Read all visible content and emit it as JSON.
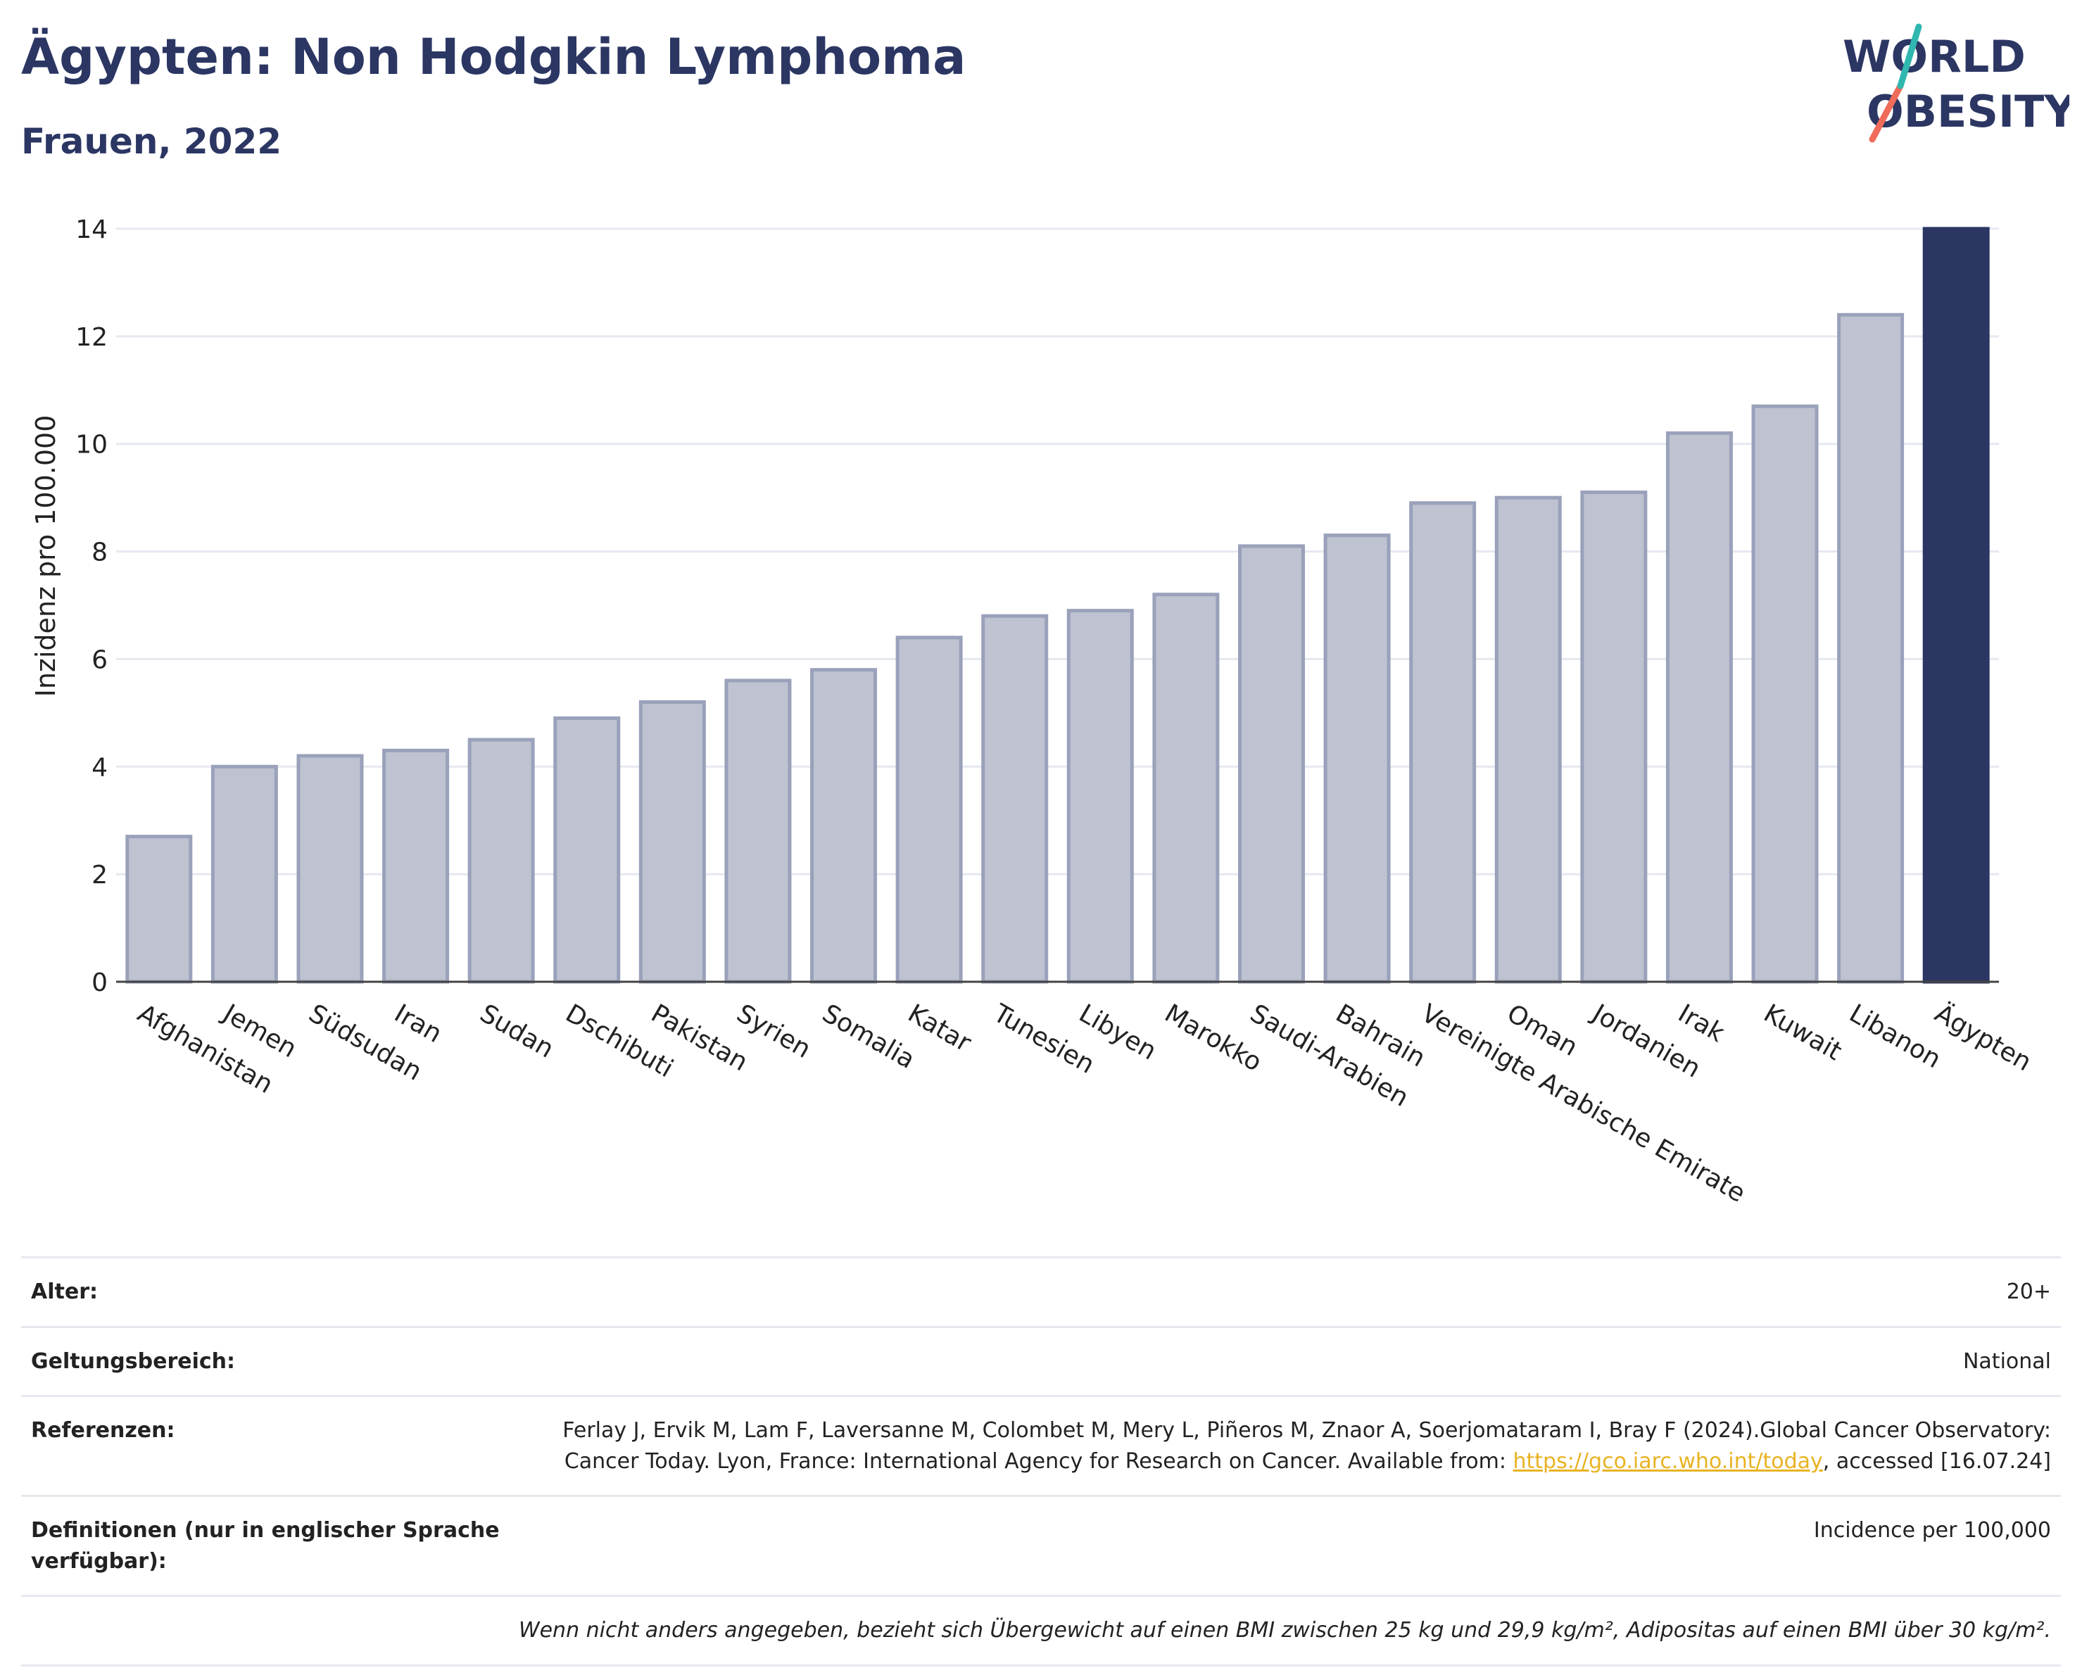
{
  "header": {
    "title": "Ägypten: Non Hodgkin Lymphoma",
    "subtitle": "Frauen, 2022"
  },
  "logo": {
    "line1": "WORLD",
    "line2": "OBESITY"
  },
  "colors": {
    "highlight_bar": "#2b3663",
    "regular_bar_fill": "#bec2d1",
    "regular_bar_stroke": "#9aa1ba",
    "grid": "#e6e8f0",
    "text": "#222222",
    "logo_teal": "#2fb7b0",
    "logo_coral": "#f06b5a"
  },
  "chart_data": {
    "type": "bar",
    "title": "Ägypten: Non Hodgkin Lymphoma",
    "subtitle": "Frauen, 2022",
    "xlabel": "",
    "ylabel": "Inzidenz pro 100.000",
    "ylim": [
      0,
      14
    ],
    "yticks": [
      0,
      2,
      4,
      6,
      8,
      10,
      12,
      14
    ],
    "grid": true,
    "highlight": "Ägypten",
    "categories": [
      "Afghanistan",
      "Jemen",
      "Südsudan",
      "Iran",
      "Sudan",
      "Dschibuti",
      "Pakistan",
      "Syrien",
      "Somalia",
      "Katar",
      "Tunesien",
      "Libyen",
      "Marokko",
      "Saudi-Arabien",
      "Bahrain",
      "Vereinigte Arabische Emirate",
      "Oman",
      "Jordanien",
      "Irak",
      "Kuwait",
      "Libanon",
      "Ägypten"
    ],
    "values": [
      2.7,
      4.0,
      4.2,
      4.3,
      4.5,
      4.9,
      5.2,
      5.6,
      5.8,
      6.4,
      6.8,
      6.9,
      7.2,
      8.1,
      8.3,
      8.9,
      9.0,
      9.1,
      10.2,
      10.7,
      12.4,
      14.0
    ]
  },
  "meta": {
    "age_label": "Alter:",
    "age_value": "20+",
    "scope_label": "Geltungsbereich:",
    "scope_value": "National",
    "refs_label": "Referenzen:",
    "refs_text_1": "Ferlay J, Ervik M, Lam F, Laversanne M, Colombet M, Mery L, Piñeros M, Znaor A, Soerjomataram I, Bray F (2024).Global Cancer Observatory: Cancer Today. Lyon, France: International Agency for Research on Cancer. Available from: ",
    "refs_link": "https://gco.iarc.who.int/today",
    "refs_text_2": ", accessed [16.07.24]",
    "defs_label": "Definitionen (nur in englischer Sprache verfügbar):",
    "defs_value": "Incidence per 100,000",
    "footnote": "Wenn nicht anders angegeben, bezieht sich Übergewicht auf einen BMI zwischen 25 kg und 29,9 kg/m², Adipositas auf einen BMI über 30 kg/m²."
  }
}
